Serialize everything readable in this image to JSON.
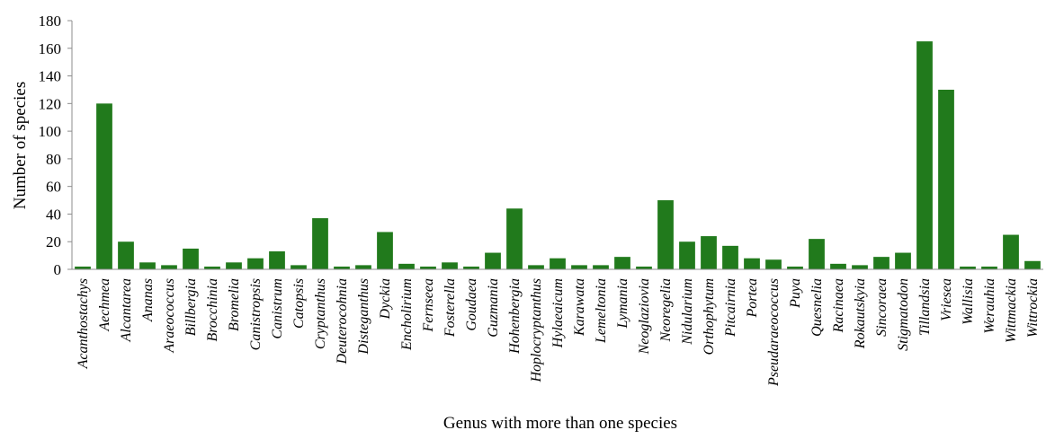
{
  "chart_data": {
    "type": "bar",
    "title": "",
    "xlabel": "Genus with more than one species",
    "ylabel": "Number of species",
    "ylim": [
      0,
      180
    ],
    "yticks": [
      0,
      20,
      40,
      60,
      80,
      100,
      120,
      140,
      160,
      180
    ],
    "grid": false,
    "legend": "none",
    "bar_color": "#217a1c",
    "categories": [
      "Acanthostachys",
      "Aechmea",
      "Alcantarea",
      "Ananas",
      "Araeococcus",
      "Billbergia",
      "Brocchinia",
      "Bromelia",
      "Canistropsis",
      "Canistrum",
      "Catopsis",
      "Cryptanthus",
      "Deuterocohnia",
      "Disteganthus",
      "Dyckia",
      "Encholirium",
      "Fernseea",
      "Fosterella",
      "Goudaea",
      "Guzmania",
      "Hohenbergia",
      "Hoplocryptanthus",
      "Hylaeaicum",
      "Karawata",
      "Lemeltonia",
      "Lymania",
      "Neoglaziovia",
      "Neoregelia",
      "Nidularium",
      "Orthophytum",
      "Pitcairnia",
      "Portea",
      "Pseudaraeococcus",
      "Puya",
      "Quesnelia",
      "Racinaea",
      "Rokautskyia",
      "Sincoraea",
      "Stigmatodon",
      "Tillandsia",
      "Vriesea",
      "Wallisia",
      "Werauhia",
      "Wittmackia",
      "Wittrockia"
    ],
    "values": [
      2,
      120,
      20,
      5,
      3,
      15,
      2,
      5,
      8,
      13,
      3,
      37,
      2,
      3,
      27,
      4,
      2,
      5,
      2,
      12,
      44,
      3,
      8,
      3,
      3,
      9,
      2,
      50,
      20,
      24,
      17,
      8,
      7,
      2,
      22,
      4,
      3,
      9,
      12,
      165,
      130,
      2,
      2,
      25,
      6
    ]
  }
}
